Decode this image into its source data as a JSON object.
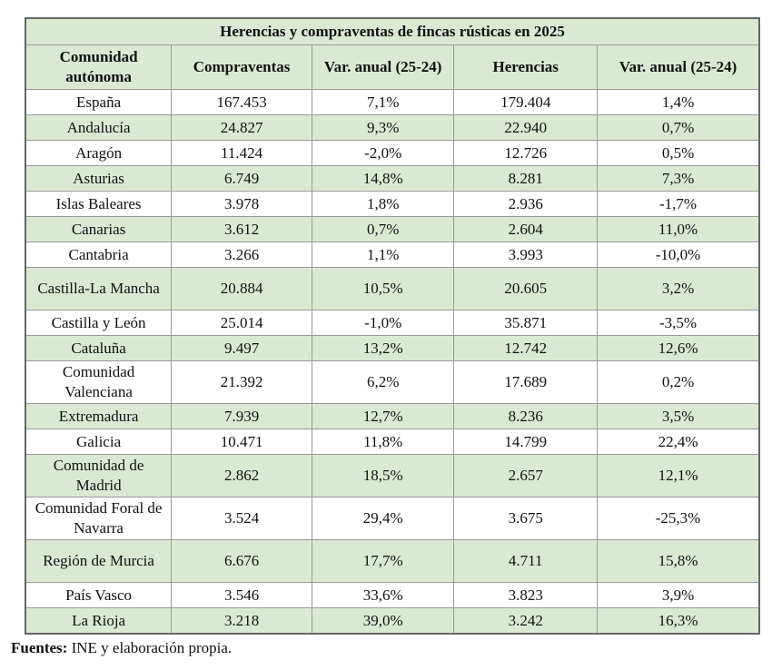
{
  "title": "Herencias y compraventas de fincas rústicas en 2025",
  "columns": [
    "Comunidad autónoma",
    "Compraventas",
    "Var. anual (25-24)",
    "Herencias",
    "Var. anual (25-24)"
  ],
  "rows": [
    [
      "España",
      "167.453",
      "7,1%",
      "179.404",
      "1,4%"
    ],
    [
      "Andalucía",
      "24.827",
      "9,3%",
      "22.940",
      "0,7%"
    ],
    [
      "Aragón",
      "11.424",
      "-2,0%",
      "12.726",
      "0,5%"
    ],
    [
      "Asturias",
      "6.749",
      "14,8%",
      "8.281",
      "7,3%"
    ],
    [
      "Islas Baleares",
      "3.978",
      "1,8%",
      "2.936",
      "-1,7%"
    ],
    [
      "Canarias",
      "3.612",
      "0,7%",
      "2.604",
      "11,0%"
    ],
    [
      "Cantabria",
      "3.266",
      "1,1%",
      "3.993",
      "-10,0%"
    ],
    [
      "Castilla-La Mancha",
      "20.884",
      "10,5%",
      "20.605",
      "3,2%"
    ],
    [
      "Castilla y León",
      "25.014",
      "-1,0%",
      "35.871",
      "-3,5%"
    ],
    [
      "Cataluña",
      "9.497",
      "13,2%",
      "12.742",
      "12,6%"
    ],
    [
      "Comunidad Valenciana",
      "21.392",
      "6,2%",
      "17.689",
      "0,2%"
    ],
    [
      "Extremadura",
      "7.939",
      "12,7%",
      "8.236",
      "3,5%"
    ],
    [
      "Galicia",
      "10.471",
      "11,8%",
      "14.799",
      "22,4%"
    ],
    [
      "Comunidad de Madrid",
      "2.862",
      "18,5%",
      "2.657",
      "12,1%"
    ],
    [
      "Comunidad Foral de Navarra",
      "3.524",
      "29,4%",
      "3.675",
      "-25,3%"
    ],
    [
      "Región de Murcia",
      "6.676",
      "17,7%",
      "4.711",
      "15,8%"
    ],
    [
      "País Vasco",
      "3.546",
      "33,6%",
      "3.823",
      "3,9%"
    ],
    [
      "La Rioja",
      "3.218",
      "39,0%",
      "3.242",
      "16,3%"
    ]
  ],
  "footer": {
    "label": "Fuentes:",
    "text": " INE y elaboración propia."
  },
  "colors": {
    "header_bg": "#dbe9d3",
    "alt_row_bg": "#dbe9d3",
    "border": "#999999"
  }
}
